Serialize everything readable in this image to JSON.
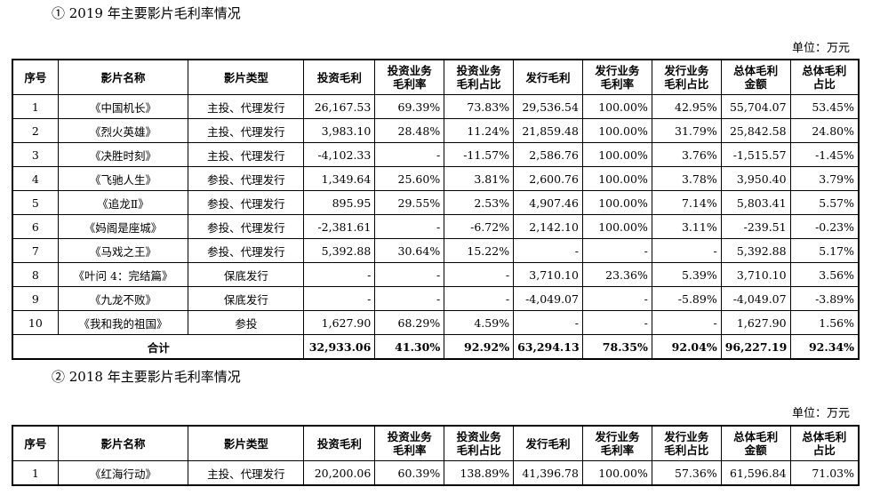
{
  "section1": {
    "heading": "① 2019 年主要影片毛利率情况",
    "unit": "单位：万元"
  },
  "section2": {
    "heading": "② 2018 年主要影片毛利率情况",
    "unit": "单位：万元"
  },
  "headers": [
    "序号",
    "影片名称",
    "影片类型",
    "投资毛利",
    "投资业务毛利率",
    "投资业务毛利占比",
    "发行毛利",
    "发行业务毛利率",
    "发行业务毛利占比",
    "总体毛利金额",
    "总体毛利占比"
  ],
  "headers_display": [
    "序号",
    "影片名称",
    "影片类型",
    "投资毛利",
    "投资业务\n毛利率",
    "投资业务\n毛利占比",
    "发行毛利",
    "发行业务\n毛利率",
    "发行业务\n毛利占比",
    "总体毛利\n金额",
    "总体毛利\n占比"
  ],
  "table2019": {
    "rows": [
      [
        "1",
        "《中国机长》",
        "主投、代理发行",
        "26,167.53",
        "69.39%",
        "73.83%",
        "29,536.54",
        "100.00%",
        "42.95%",
        "55,704.07",
        "53.45%"
      ],
      [
        "2",
        "《烈火英雄》",
        "主投、代理发行",
        "3,983.10",
        "28.48%",
        "11.24%",
        "21,859.48",
        "100.00%",
        "31.79%",
        "25,842.58",
        "24.80%"
      ],
      [
        "3",
        "《决胜时刻》",
        "主投、代理发行",
        "-4,102.33",
        "-",
        "-11.57%",
        "2,586.76",
        "100.00%",
        "3.76%",
        "-1,515.57",
        "-1.45%"
      ],
      [
        "4",
        "《飞驰人生》",
        "参投、代理发行",
        "1,349.64",
        "25.60%",
        "3.81%",
        "2,600.76",
        "100.00%",
        "3.78%",
        "3,950.40",
        "3.79%"
      ],
      [
        "5",
        "《追龙Ⅱ》",
        "参投、代理发行",
        "895.95",
        "29.55%",
        "2.53%",
        "4,907.46",
        "100.00%",
        "7.14%",
        "5,803.41",
        "5.57%"
      ],
      [
        "6",
        "《妈阁是座城》",
        "参投、代理发行",
        "-2,381.61",
        "-",
        "-6.72%",
        "2,142.10",
        "100.00%",
        "3.11%",
        "-239.51",
        "-0.23%"
      ],
      [
        "7",
        "《马戏之王》",
        "参投、代理发行",
        "5,392.88",
        "30.64%",
        "15.22%",
        "-",
        "-",
        "-",
        "5,392.88",
        "5.17%"
      ],
      [
        "8",
        "《叶问 4：完结篇》",
        "保底发行",
        "-",
        "-",
        "-",
        "3,710.10",
        "23.36%",
        "5.39%",
        "3,710.10",
        "3.56%"
      ],
      [
        "9",
        "《九龙不败》",
        "保底发行",
        "-",
        "-",
        "-",
        "-4,049.07",
        "-",
        "-5.89%",
        "-4,049.07",
        "-3.89%"
      ],
      [
        "10",
        "《我和我的祖国》",
        "参投",
        "1,627.90",
        "68.29%",
        "4.59%",
        "-",
        "-",
        "-",
        "1,627.90",
        "1.56%"
      ]
    ],
    "total": [
      "合计",
      "32,933.06",
      "41.30%",
      "92.92%",
      "63,294.13",
      "78.35%",
      "92.04%",
      "96,227.19",
      "92.34%"
    ]
  },
  "table2018": {
    "rows": [
      [
        "1",
        "《红海行动》",
        "主投、代理发行",
        "20,200.06",
        "60.39%",
        "138.89%",
        "41,396.78",
        "100.00%",
        "57.36%",
        "61,596.84",
        "71.03%"
      ]
    ]
  }
}
